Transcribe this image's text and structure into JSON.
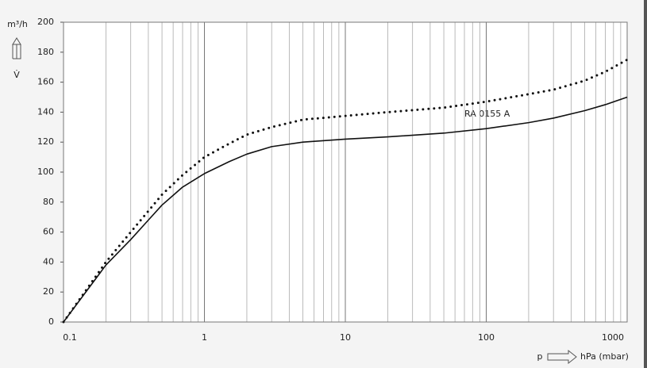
{
  "chart_data": {
    "type": "line",
    "y_label": "m³/h",
    "y_symbol": "V̇",
    "x_symbol": "p",
    "x_label": "hPa (mbar)",
    "annotation": "RA 0155 A",
    "x": [
      0.1,
      0.2,
      0.3,
      0.4,
      0.5,
      0.7,
      1,
      1.5,
      2,
      3,
      5,
      10,
      20,
      50,
      100,
      200,
      300,
      500,
      700,
      1000
    ],
    "series": [
      {
        "color": "#111111",
        "style": "solid",
        "values": [
          0,
          38,
          55,
          68,
          78,
          90,
          99,
          107,
          112,
          117,
          120,
          122,
          123.5,
          126,
          129,
          133,
          136,
          141,
          145,
          150
        ]
      },
      {
        "color": "#111111",
        "style": "dotted",
        "values": [
          0,
          40,
          60,
          74,
          85,
          98,
          110,
          119,
          125,
          130,
          135,
          137.5,
          140,
          143,
          147,
          152,
          155,
          161,
          167,
          175
        ]
      }
    ],
    "xscale": "log",
    "xlim": [
      0.1,
      1000
    ],
    "xticks": [
      0.1,
      1,
      10,
      100,
      1000
    ],
    "xminor_ticks": [
      0.2,
      0.3,
      0.4,
      0.5,
      0.6,
      0.7,
      0.8,
      0.9,
      2,
      3,
      4,
      5,
      6,
      7,
      8,
      9,
      20,
      30,
      40,
      50,
      60,
      70,
      80,
      90,
      200,
      300,
      400,
      500,
      600,
      700,
      800,
      900
    ],
    "ylim": [
      0,
      200
    ],
    "yticks": [
      0,
      20,
      40,
      60,
      80,
      100,
      120,
      140,
      160,
      180,
      200
    ],
    "grid": true
  }
}
